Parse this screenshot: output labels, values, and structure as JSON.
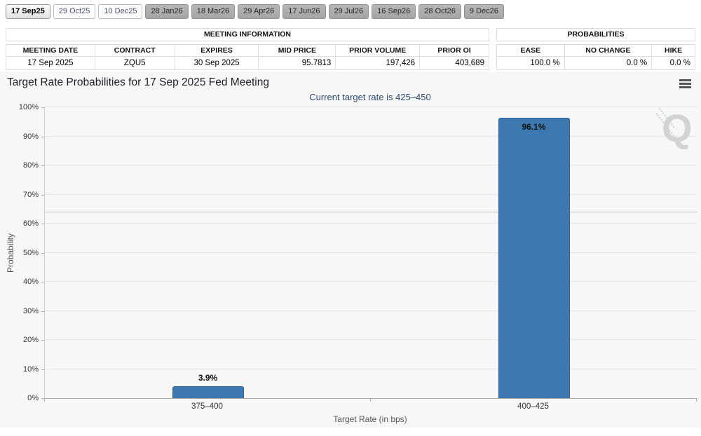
{
  "tabs": {
    "items": [
      {
        "label": "17 Sep25",
        "state": "selected"
      },
      {
        "label": "29 Oct25",
        "state": "near"
      },
      {
        "label": "10 Dec25",
        "state": "near"
      },
      {
        "label": "28 Jan26",
        "state": "far"
      },
      {
        "label": "18 Mar26",
        "state": "far"
      },
      {
        "label": "29 Apr26",
        "state": "far"
      },
      {
        "label": "17 Jun26",
        "state": "far"
      },
      {
        "label": "29 Jul26",
        "state": "far"
      },
      {
        "label": "16 Sep26",
        "state": "far"
      },
      {
        "label": "28 Oct26",
        "state": "far"
      },
      {
        "label": "9 Dec26",
        "state": "far"
      }
    ]
  },
  "meeting_info": {
    "title": "MEETING INFORMATION",
    "columns": [
      "MEETING DATE",
      "CONTRACT",
      "EXPIRES",
      "MID PRICE",
      "PRIOR VOLUME",
      "PRIOR OI"
    ],
    "values": [
      "17 Sep 2025",
      "ZQU5",
      "30 Sep 2025",
      "95.7813",
      "197,426",
      "403,689"
    ]
  },
  "probabilities": {
    "title": "PROBABILITIES",
    "columns": [
      "EASE",
      "NO CHANGE",
      "HIKE"
    ],
    "values": [
      "100.0 %",
      "0.0 %",
      "0.0 %"
    ]
  },
  "chart": {
    "menu_icon": "hamburger-icon",
    "watermark_letter": "Q"
  },
  "chart_data": {
    "type": "bar",
    "title": "Target Rate Probabilities for 17 Sep 2025 Fed Meeting",
    "subtitle": "Current target rate is 425–450",
    "categories": [
      "375–400",
      "400–425"
    ],
    "values": [
      3.9,
      96.1
    ],
    "value_labels": [
      "3.9%",
      "96.1%"
    ],
    "xlabel": "Target Rate (in bps)",
    "ylabel": "Probability",
    "ylim": [
      0,
      100
    ],
    "ytick_step": 10,
    "ytick_suffix": "%",
    "grid": "dotted",
    "legend_position": "none",
    "reference_line_pct": 63.9,
    "bar_color": "#3D79B0",
    "bar_border_color": "#2F669C"
  }
}
